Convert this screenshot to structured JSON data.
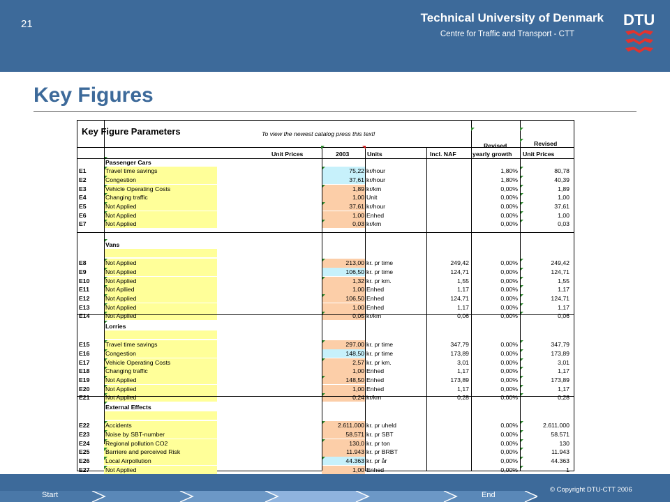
{
  "header": {
    "slide_number": "21",
    "university": "Technical University of Denmark",
    "centre": "Centre for Traffic and Transport - CTT",
    "logo_text": "DTU"
  },
  "slide_title": "Key Figures",
  "sheet": {
    "title": "Key Figure Parameters",
    "hint": "To view the newest catalog press this text!",
    "columns": {
      "unit_prices": "Unit Prices",
      "year": "2003",
      "units": "Units",
      "incl_naf": "Incl. NAF",
      "revised_growth_1": "Revised",
      "revised_growth_2": "yearly growth",
      "revised_price_1": "Revised",
      "revised_price_2": "Unit Prices"
    },
    "sections": [
      {
        "title": "Passenger Cars",
        "rows": [
          {
            "id": "E1",
            "name": "Travel time savings",
            "price": "75,22",
            "unit": "kr/hour",
            "naf": "",
            "growth": "1,80%",
            "revised": "80,78"
          },
          {
            "id": "E2",
            "name": "Congestion",
            "price": "37,61",
            "unit": "kr/hour",
            "naf": "",
            "growth": "1,80%",
            "revised": "40,39"
          },
          {
            "id": "E3",
            "name": "Vehicle Operating Costs",
            "price": "1,89",
            "unit": "kr/km",
            "naf": "",
            "growth": "0,00%",
            "revised": "1,89"
          },
          {
            "id": "E4",
            "name": "Changing traffic",
            "price": "1,00",
            "unit": "Unit",
            "naf": "",
            "growth": "0,00%",
            "revised": "1,00"
          },
          {
            "id": "E5",
            "name": "Not Applied",
            "price": "37,61",
            "unit": "kr/hour",
            "naf": "",
            "growth": "0,00%",
            "revised": "37,61"
          },
          {
            "id": "E6",
            "name": "Not Applied",
            "price": "1,00",
            "unit": "Enhed",
            "naf": "",
            "growth": "0,00%",
            "revised": "1,00"
          },
          {
            "id": "E7",
            "name": "Not Applied",
            "price": "0,03",
            "unit": "kr/km",
            "naf": "",
            "growth": "0,00%",
            "revised": "0,03"
          }
        ]
      },
      {
        "title": "Vans",
        "rows": [
          {
            "id": "E8",
            "name": "Not Applied",
            "price": "213,00",
            "unit": "kr. pr time",
            "naf": "249,42",
            "growth": "0,00%",
            "revised": "249,42"
          },
          {
            "id": "E9",
            "name": "Not Applied",
            "price": "106,50",
            "unit": "kr. pr time",
            "naf": "124,71",
            "growth": "0,00%",
            "revised": "124,71"
          },
          {
            "id": "E10",
            "name": "Not Applied",
            "price": "1,32",
            "unit": "kr. pr km.",
            "naf": "1,55",
            "growth": "0,00%",
            "revised": "1,55"
          },
          {
            "id": "E11",
            "name": "Not Apllied",
            "price": "1,00",
            "unit": "Enhed",
            "naf": "1,17",
            "growth": "0,00%",
            "revised": "1,17"
          },
          {
            "id": "E12",
            "name": "Not Applied",
            "price": "106,50",
            "unit": "Enhed",
            "naf": "124,71",
            "growth": "0,00%",
            "revised": "124,71"
          },
          {
            "id": "E13",
            "name": "Not Applied",
            "price": "1,00",
            "unit": "Enhed",
            "naf": "1,17",
            "growth": "0,00%",
            "revised": "1,17"
          },
          {
            "id": "E14",
            "name": "Not Applied",
            "price": "0,05",
            "unit": "kr/km",
            "naf": "0,06",
            "growth": "0,00%",
            "revised": "0,06"
          }
        ]
      },
      {
        "title": "Lorries",
        "rows": [
          {
            "id": "E15",
            "name": "Travel time savings",
            "price": "297,00",
            "unit": "kr. pr time",
            "naf": "347,79",
            "growth": "0,00%",
            "revised": "347,79"
          },
          {
            "id": "E16",
            "name": "Congestion",
            "price": "148,50",
            "unit": "kr. pr time",
            "naf": "173,89",
            "growth": "0,00%",
            "revised": "173,89"
          },
          {
            "id": "E17",
            "name": "Vehicle Operating Costs",
            "price": "2,57",
            "unit": "kr. pr km.",
            "naf": "3,01",
            "growth": "0,00%",
            "revised": "3,01"
          },
          {
            "id": "E18",
            "name": "Changing traffic",
            "price": "1,00",
            "unit": "Enhed",
            "naf": "1,17",
            "growth": "0,00%",
            "revised": "1,17"
          },
          {
            "id": "E19",
            "name": "Not Applied",
            "price": "148,50",
            "unit": "Enhed",
            "naf": "173,89",
            "growth": "0,00%",
            "revised": "173,89"
          },
          {
            "id": "E20",
            "name": "Not Applied",
            "price": "1,00",
            "unit": "Enhed",
            "naf": "1,17",
            "growth": "0,00%",
            "revised": "1,17"
          },
          {
            "id": "E21",
            "name": "Not Applied",
            "price": "0,24",
            "unit": "kr/km",
            "naf": "0,28",
            "growth": "0,00%",
            "revised": "0,28"
          }
        ]
      },
      {
        "title": "External Effects",
        "rows": [
          {
            "id": "E22",
            "name": "Accidents",
            "price": "2.611.000",
            "unit": "kr. pr uheld",
            "naf": "",
            "growth": "0,00%",
            "revised": "2.611.000"
          },
          {
            "id": "E23",
            "name": "Noise by SBT-number",
            "price": "58.571",
            "unit": "kr. pr SBT",
            "naf": "",
            "growth": "0,00%",
            "revised": "58.571"
          },
          {
            "id": "E24",
            "name": "Regional pollution CO2",
            "price": "130,0",
            "unit": "kr. pr ton",
            "naf": "",
            "growth": "0,00%",
            "revised": "130"
          },
          {
            "id": "E25",
            "name": "Barriere and perceived Risk",
            "price": "11.943",
            "unit": "kr. pr BRBT",
            "naf": "",
            "growth": "0,00%",
            "revised": "11.943"
          },
          {
            "id": "E26",
            "name": "Local Airpollution",
            "price": "44.363",
            "unit": "kr. pr år",
            "naf": "",
            "growth": "0,00%",
            "revised": "44.363"
          },
          {
            "id": "E27",
            "name": "Not Applied",
            "price": "1,00",
            "unit": "Enhed",
            "naf": "",
            "growth": "0,00%",
            "revised": "1"
          }
        ]
      }
    ]
  },
  "footer": {
    "start": "Start",
    "end": "End",
    "copyright": "© Copyright DTU-CTT 2006"
  },
  "colors": {
    "brand_blue": "#3d6a9a",
    "yellow_cell": "#ffff99",
    "peach_cell": "#fccea8",
    "cyan_cell": "#c7f1fb",
    "logo_red": "#c8102e"
  }
}
